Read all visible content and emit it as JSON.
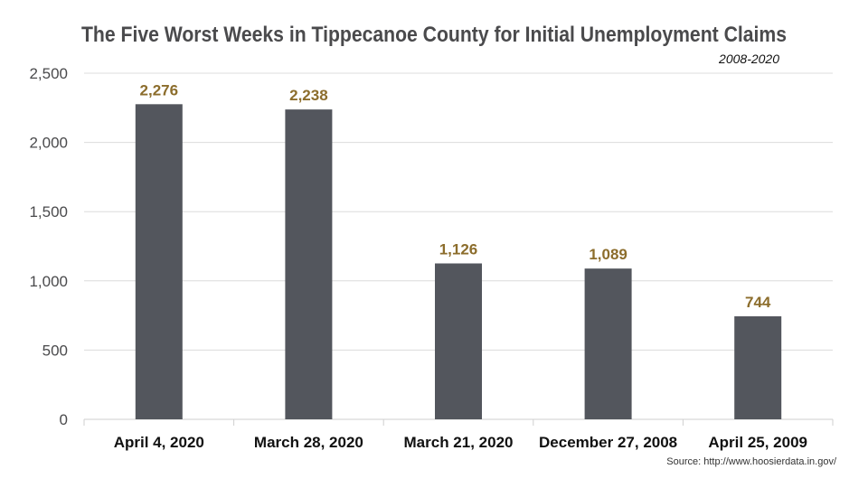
{
  "chart_data": {
    "type": "bar",
    "title": "The Five Worst Weeks in Tippecanoe County for Initial Unemployment Claims",
    "subtitle": "2008-2020",
    "categories": [
      "April 4, 2020",
      "March 28, 2020",
      "March 21, 2020",
      "December 27, 2008",
      "April 25, 2009"
    ],
    "values": [
      2276,
      2238,
      1126,
      1089,
      744
    ],
    "data_labels": [
      "2,276",
      "2,238",
      "1,126",
      "1,089",
      "744"
    ],
    "xlabel": "",
    "ylabel": "",
    "ylim": [
      0,
      2500
    ],
    "yticks": [
      0,
      500,
      1000,
      1500,
      2000,
      2500
    ],
    "ytick_labels": [
      "0",
      "500",
      "1,000",
      "1,500",
      "2,000",
      "2,500"
    ],
    "grid": true,
    "legend": "none",
    "source": "Source: http://www.hoosierdata.in.gov/",
    "colors": {
      "bar": "#53565d",
      "data_label": "#8c6d2c"
    }
  }
}
